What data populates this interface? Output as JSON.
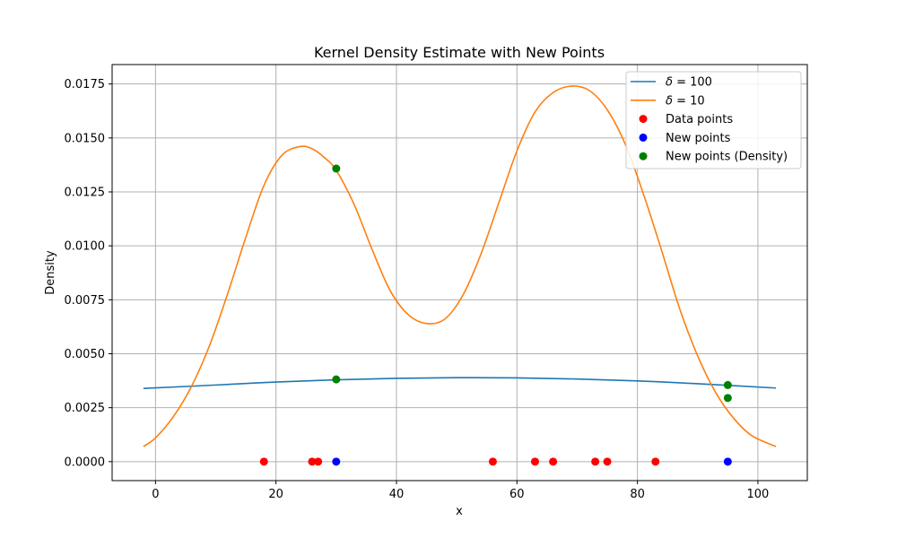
{
  "chart_data": {
    "type": "line",
    "title": "Kernel Density Estimate with New Points",
    "xlabel": "x",
    "ylabel": "Density",
    "xlim": [
      -7.2,
      108.2
    ],
    "ylim": [
      -0.00088,
      0.0184
    ],
    "x_ticks": [
      0,
      20,
      40,
      60,
      80,
      100
    ],
    "x_tick_labels": [
      "0",
      "20",
      "40",
      "60",
      "80",
      "100"
    ],
    "y_ticks": [
      0.0,
      0.0025,
      0.005,
      0.0075,
      0.01,
      0.0125,
      0.015,
      0.0175
    ],
    "y_tick_labels": [
      "0.0000",
      "0.0025",
      "0.0050",
      "0.0075",
      "0.0100",
      "0.0125",
      "0.0150",
      "0.0175"
    ],
    "grid": true,
    "legend_position": "top-right",
    "colors": {
      "delta100": "#1f77b4",
      "delta10": "#ff7f0e",
      "data_points": "#ff0000",
      "new_points": "#0000ff",
      "new_points_density": "#008000"
    },
    "series": [
      {
        "name": "δ = 100",
        "legend_math_symbol": "δ",
        "legend_math_rest": " = 100",
        "kind": "line",
        "color": "#1f77b4",
        "x": [
          -2,
          10,
          20,
          30,
          40,
          50,
          60,
          70,
          80,
          90,
          103
        ],
        "y": [
          0.00339,
          0.00355,
          0.00369,
          0.00379,
          0.00386,
          0.00389,
          0.00388,
          0.00383,
          0.00374,
          0.00361,
          0.00341
        ]
      },
      {
        "name": "δ = 10",
        "legend_math_symbol": "δ",
        "legend_math_rest": " = 10",
        "kind": "line",
        "color": "#ff7f0e",
        "x": [
          -2,
          0,
          3,
          6,
          9,
          12,
          15,
          18,
          21,
          24,
          26,
          28,
          30,
          33,
          36,
          39,
          42,
          45,
          48,
          51,
          54,
          57,
          60,
          63,
          66,
          69,
          72,
          75,
          78,
          81,
          84,
          87,
          90,
          93,
          96,
          99,
          103
        ],
        "y": [
          0.0007,
          0.0011,
          0.0021,
          0.0035,
          0.0054,
          0.0078,
          0.0104,
          0.0128,
          0.0142,
          0.0146,
          0.0145,
          0.0141,
          0.0135,
          0.0119,
          0.0098,
          0.0079,
          0.0068,
          0.0064,
          0.0066,
          0.0077,
          0.0096,
          0.012,
          0.0144,
          0.0162,
          0.0171,
          0.0174,
          0.0172,
          0.0163,
          0.0147,
          0.0124,
          0.0098,
          0.0071,
          0.0049,
          0.0032,
          0.002,
          0.0012,
          0.0007
        ]
      },
      {
        "name": "Data points",
        "kind": "scatter",
        "color": "#ff0000",
        "x": [
          18,
          26,
          27,
          56,
          63,
          66,
          73,
          75,
          83
        ],
        "y": [
          0,
          0,
          0,
          0,
          0,
          0,
          0,
          0,
          0
        ]
      },
      {
        "name": "New points",
        "kind": "scatter",
        "color": "#0000ff",
        "x": [
          30,
          95
        ],
        "y": [
          0,
          0
        ]
      },
      {
        "name": "New points (Density)",
        "kind": "scatter",
        "color": "#008000",
        "x": [
          30,
          30,
          95,
          95
        ],
        "y": [
          0.01358,
          0.00381,
          0.00355,
          0.00295
        ]
      }
    ]
  }
}
